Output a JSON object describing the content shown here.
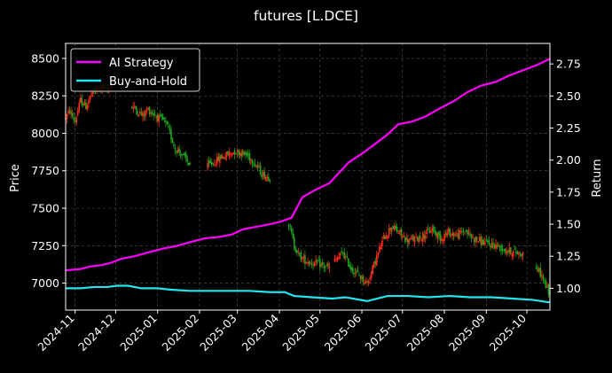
{
  "chart_data": {
    "type": "line",
    "title": "futures [L.DCE]",
    "xlabel": "",
    "ylabel_left": "Price",
    "ylabel_right": "Return",
    "x_ticks": [
      "2024-11",
      "2024-12",
      "2025-01",
      "2025-02",
      "2025-03",
      "2025-04",
      "2025-05",
      "2025-06",
      "2025-07",
      "2025-08",
      "2025-09",
      "2025-10"
    ],
    "x_range": [
      "2024-10-25",
      "2025-10-18"
    ],
    "ylim_left": [
      6820,
      8600
    ],
    "yticks_left": [
      7000,
      7250,
      7500,
      7750,
      8000,
      8250,
      8500
    ],
    "ylim_right": [
      0.83,
      2.91
    ],
    "yticks_right": [
      1.0,
      1.25,
      1.5,
      1.75,
      2.0,
      2.25,
      2.5,
      2.75
    ],
    "ytick_labels_left": [
      "7000",
      "7250",
      "7500",
      "7750",
      "8000",
      "8250",
      "8500"
    ],
    "ytick_labels_right": [
      "1.00",
      "1.25",
      "1.50",
      "1.75",
      "2.00",
      "2.25",
      "2.50",
      "2.75"
    ],
    "grid": true,
    "legend_position": "top-left",
    "series": [
      {
        "name": "AI Strategy",
        "axis": "right",
        "color": "#ff00ff",
        "points": [
          [
            "2024-10-25",
            1.14
          ],
          [
            "2024-11-05",
            1.15
          ],
          [
            "2024-11-12",
            1.17
          ],
          [
            "2024-11-20",
            1.18
          ],
          [
            "2024-11-28",
            1.2
          ],
          [
            "2024-12-05",
            1.23
          ],
          [
            "2024-12-15",
            1.25
          ],
          [
            "2024-12-25",
            1.28
          ],
          [
            "2025-01-05",
            1.31
          ],
          [
            "2025-01-15",
            1.33
          ],
          [
            "2025-01-25",
            1.36
          ],
          [
            "2025-02-05",
            1.39
          ],
          [
            "2025-02-15",
            1.4
          ],
          [
            "2025-02-25",
            1.42
          ],
          [
            "2025-03-05",
            1.46
          ],
          [
            "2025-03-15",
            1.48
          ],
          [
            "2025-03-25",
            1.5
          ],
          [
            "2025-04-02",
            1.52
          ],
          [
            "2025-04-10",
            1.55
          ],
          [
            "2025-04-18",
            1.71
          ],
          [
            "2025-04-28",
            1.77
          ],
          [
            "2025-05-08",
            1.82
          ],
          [
            "2025-05-15",
            1.9
          ],
          [
            "2025-05-22",
            1.98
          ],
          [
            "2025-06-01",
            2.05
          ],
          [
            "2025-06-10",
            2.12
          ],
          [
            "2025-06-20",
            2.2
          ],
          [
            "2025-06-28",
            2.28
          ],
          [
            "2025-07-08",
            2.3
          ],
          [
            "2025-07-18",
            2.34
          ],
          [
            "2025-07-28",
            2.4
          ],
          [
            "2025-08-08",
            2.46
          ],
          [
            "2025-08-18",
            2.53
          ],
          [
            "2025-08-28",
            2.58
          ],
          [
            "2025-09-08",
            2.61
          ],
          [
            "2025-09-18",
            2.66
          ],
          [
            "2025-09-28",
            2.7
          ],
          [
            "2025-10-08",
            2.74
          ],
          [
            "2025-10-18",
            2.79
          ]
        ]
      },
      {
        "name": "Buy-and-Hold",
        "axis": "right",
        "color": "#22e5f0",
        "points": [
          [
            "2024-10-25",
            1.0
          ],
          [
            "2024-11-05",
            1.0
          ],
          [
            "2024-11-15",
            1.01
          ],
          [
            "2024-11-25",
            1.01
          ],
          [
            "2024-12-02",
            1.02
          ],
          [
            "2024-12-10",
            1.02
          ],
          [
            "2024-12-20",
            1.0
          ],
          [
            "2025-01-01",
            1.0
          ],
          [
            "2025-01-10",
            0.99
          ],
          [
            "2025-01-25",
            0.98
          ],
          [
            "2025-02-10",
            0.98
          ],
          [
            "2025-02-25",
            0.98
          ],
          [
            "2025-03-10",
            0.98
          ],
          [
            "2025-03-25",
            0.97
          ],
          [
            "2025-04-05",
            0.97
          ],
          [
            "2025-04-12",
            0.94
          ],
          [
            "2025-04-25",
            0.93
          ],
          [
            "2025-05-10",
            0.92
          ],
          [
            "2025-05-20",
            0.93
          ],
          [
            "2025-06-05",
            0.9
          ],
          [
            "2025-06-20",
            0.94
          ],
          [
            "2025-07-05",
            0.94
          ],
          [
            "2025-07-20",
            0.93
          ],
          [
            "2025-08-05",
            0.94
          ],
          [
            "2025-08-20",
            0.93
          ],
          [
            "2025-09-05",
            0.93
          ],
          [
            "2025-09-20",
            0.92
          ],
          [
            "2025-10-05",
            0.91
          ],
          [
            "2025-10-18",
            0.89
          ]
        ]
      }
    ],
    "price_candles": {
      "axis": "left",
      "up_color": "#ff2a1a",
      "down_color": "#1fa31f",
      "segments": [
        {
          "start": "2024-10-25",
          "end": "2024-11-28",
          "points": [
            [
              0,
              8100
            ],
            [
              3,
              8150
            ],
            [
              7,
              8080
            ],
            [
              11,
              8220
            ],
            [
              15,
              8180
            ],
            [
              19,
              8260
            ],
            [
              23,
              8300
            ],
            [
              27,
              8310
            ],
            [
              31,
              8290
            ],
            [
              34,
              8330
            ]
          ]
        },
        {
          "start": "2024-12-13",
          "end": "2025-01-25",
          "points": [
            [
              0,
              8180
            ],
            [
              4,
              8150
            ],
            [
              8,
              8120
            ],
            [
              12,
              8160
            ],
            [
              16,
              8130
            ],
            [
              20,
              8100
            ],
            [
              24,
              8080
            ],
            [
              28,
              8000
            ],
            [
              32,
              7900
            ],
            [
              36,
              7870
            ],
            [
              40,
              7820
            ],
            [
              43,
              7790
            ]
          ]
        },
        {
          "start": "2025-02-07",
          "end": "2025-03-25",
          "points": [
            [
              0,
              7780
            ],
            [
              5,
              7810
            ],
            [
              10,
              7840
            ],
            [
              15,
              7860
            ],
            [
              20,
              7880
            ],
            [
              25,
              7870
            ],
            [
              30,
              7850
            ],
            [
              35,
              7800
            ],
            [
              40,
              7730
            ],
            [
              46,
              7700
            ]
          ]
        },
        {
          "start": "2025-04-08",
          "end": "2025-05-08",
          "points": [
            [
              0,
              7400
            ],
            [
              4,
              7250
            ],
            [
              8,
              7180
            ],
            [
              12,
              7150
            ],
            [
              16,
              7140
            ],
            [
              20,
              7130
            ],
            [
              24,
              7120
            ],
            [
              30,
              7100
            ]
          ]
        },
        {
          "start": "2025-05-12",
          "end": "2025-09-28",
          "points": [
            [
              0,
              7150
            ],
            [
              6,
              7200
            ],
            [
              12,
              7100
            ],
            [
              18,
              7050
            ],
            [
              24,
              7000
            ],
            [
              30,
              7150
            ],
            [
              36,
              7300
            ],
            [
              42,
              7380
            ],
            [
              48,
              7330
            ],
            [
              54,
              7280
            ],
            [
              60,
              7300
            ],
            [
              66,
              7320
            ],
            [
              72,
              7360
            ],
            [
              78,
              7300
            ],
            [
              84,
              7340
            ],
            [
              90,
              7320
            ],
            [
              96,
              7350
            ],
            [
              102,
              7300
            ],
            [
              108,
              7280
            ],
            [
              114,
              7260
            ],
            [
              120,
              7250
            ],
            [
              126,
              7220
            ],
            [
              136,
              7200
            ]
          ]
        },
        {
          "start": "2025-10-08",
          "end": "2025-10-18",
          "points": [
            [
              0,
              7100
            ],
            [
              4,
              7050
            ],
            [
              7,
              6980
            ],
            [
              10,
              6920
            ]
          ]
        }
      ]
    }
  }
}
